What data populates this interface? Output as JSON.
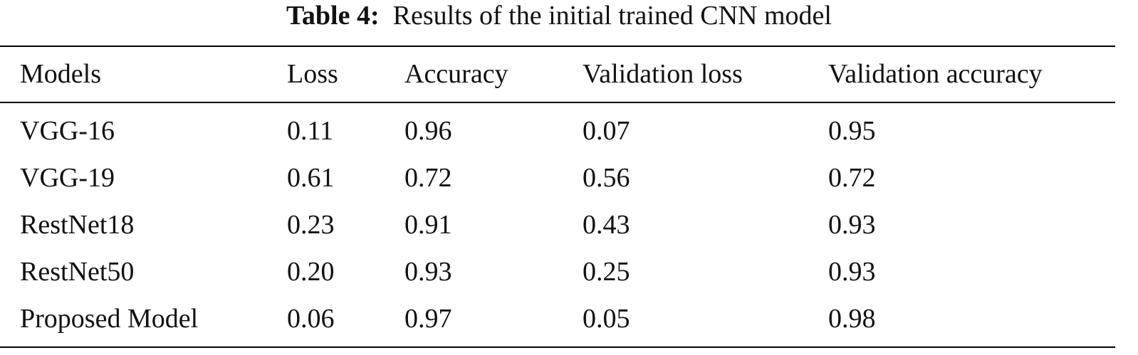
{
  "caption": {
    "label": "Table 4:",
    "text": "Results of the initial trained CNN model"
  },
  "table": {
    "headers": [
      "Models",
      "Loss",
      "Accuracy",
      "Validation loss",
      "Validation accuracy"
    ],
    "rows": [
      [
        "VGG-16",
        "0.11",
        "0.96",
        "0.07",
        "0.95"
      ],
      [
        "VGG-19",
        "0.61",
        "0.72",
        "0.56",
        "0.72"
      ],
      [
        "RestNet18",
        "0.23",
        "0.91",
        "0.43",
        "0.93"
      ],
      [
        "RestNet50",
        "0.20",
        "0.93",
        "0.25",
        "0.93"
      ],
      [
        "Proposed Model",
        "0.06",
        "0.97",
        "0.05",
        "0.98"
      ]
    ]
  }
}
